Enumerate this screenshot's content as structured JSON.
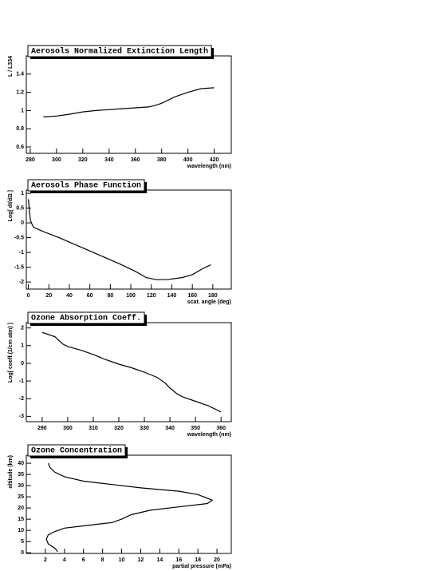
{
  "chart_data": [
    {
      "type": "line",
      "title": "Aerosols Normalized Extinction Length",
      "x_label": "wavelength (nm)",
      "y_label": "L / L334",
      "x": [
        290,
        300,
        310,
        320,
        330,
        340,
        350,
        360,
        370,
        375,
        380,
        390,
        400,
        410,
        420
      ],
      "values": [
        0.93,
        0.94,
        0.96,
        0.985,
        1.0,
        1.01,
        1.02,
        1.03,
        1.04,
        1.055,
        1.08,
        1.15,
        1.2,
        1.24,
        1.25
      ],
      "color": "#000000",
      "xlim": [
        277,
        433
      ],
      "ylim": [
        0.53,
        1.6
      ],
      "xticks": [
        280,
        300,
        320,
        340,
        360,
        380,
        400,
        420
      ],
      "yticks": [
        0.6,
        0.8,
        1,
        1.2,
        1.4
      ]
    },
    {
      "type": "line",
      "title": "Aerosols Phase Function",
      "x_label": "scat. angle (deg)",
      "y_label": "Log[ dI/dΩ ]",
      "x": [
        0,
        1,
        2,
        3,
        5,
        15,
        30,
        50,
        70,
        90,
        105,
        115,
        125,
        135,
        150,
        160,
        170,
        178
      ],
      "values": [
        0.8,
        0.4,
        0.1,
        0.0,
        -0.15,
        -0.3,
        -0.5,
        -0.8,
        -1.1,
        -1.4,
        -1.65,
        -1.85,
        -1.92,
        -1.92,
        -1.85,
        -1.75,
        -1.55,
        -1.42
      ],
      "color": "#000000",
      "xlim": [
        -2,
        198
      ],
      "ylim": [
        -2.24,
        1.11
      ],
      "xticks": [
        0,
        20,
        40,
        60,
        80,
        100,
        120,
        140,
        160,
        180
      ],
      "yticks": [
        -2,
        -1.5,
        -1,
        -0.5,
        0,
        0.5,
        1
      ]
    },
    {
      "type": "line",
      "title": "Ozone Absorption Coeff.",
      "x_label": "wavelength (nm)",
      "y_label": "Log[ coeff.(1/cm atm) ]",
      "x": [
        290,
        295,
        298,
        300,
        305,
        310,
        315,
        320,
        325,
        330,
        335,
        338,
        340,
        343,
        345,
        350,
        355,
        360
      ],
      "values": [
        1.75,
        1.5,
        1.1,
        0.95,
        0.75,
        0.5,
        0.2,
        -0.05,
        -0.25,
        -0.5,
        -0.8,
        -1.1,
        -1.4,
        -1.75,
        -1.9,
        -2.15,
        -2.4,
        -2.75
      ],
      "color": "#000000",
      "xlim": [
        283.8,
        364
      ],
      "ylim": [
        -3.3,
        2.3
      ],
      "xticks": [
        290,
        300,
        310,
        320,
        330,
        340,
        350,
        360
      ],
      "yticks": [
        -3,
        -2,
        -1,
        0,
        1,
        2
      ]
    },
    {
      "type": "line",
      "title": "Ozone Concentration",
      "x_label": "partial pressure (mPa)",
      "y_label": "altitude (km)",
      "x": [
        2.3,
        2.5,
        3,
        4,
        6,
        9,
        12,
        16,
        18,
        19.5,
        19,
        16,
        13,
        11,
        10,
        9,
        6,
        4,
        3,
        2.3,
        2.1,
        2.3,
        3,
        3.3
      ],
      "values": [
        40,
        38,
        36,
        34,
        32,
        30.5,
        29,
        27.5,
        26,
        23.5,
        22,
        20.5,
        19,
        17,
        15,
        13.5,
        12,
        11,
        9.5,
        8,
        6,
        4,
        2,
        0.5
      ],
      "color": "#000000",
      "xlim": [
        0,
        21.5
      ],
      "ylim": [
        -0.3,
        43.6
      ],
      "xticks": [
        2,
        4,
        6,
        8,
        10,
        12,
        14,
        16,
        18,
        20
      ],
      "yticks": [
        0,
        5,
        10,
        15,
        20,
        25,
        30,
        35,
        40
      ]
    }
  ]
}
